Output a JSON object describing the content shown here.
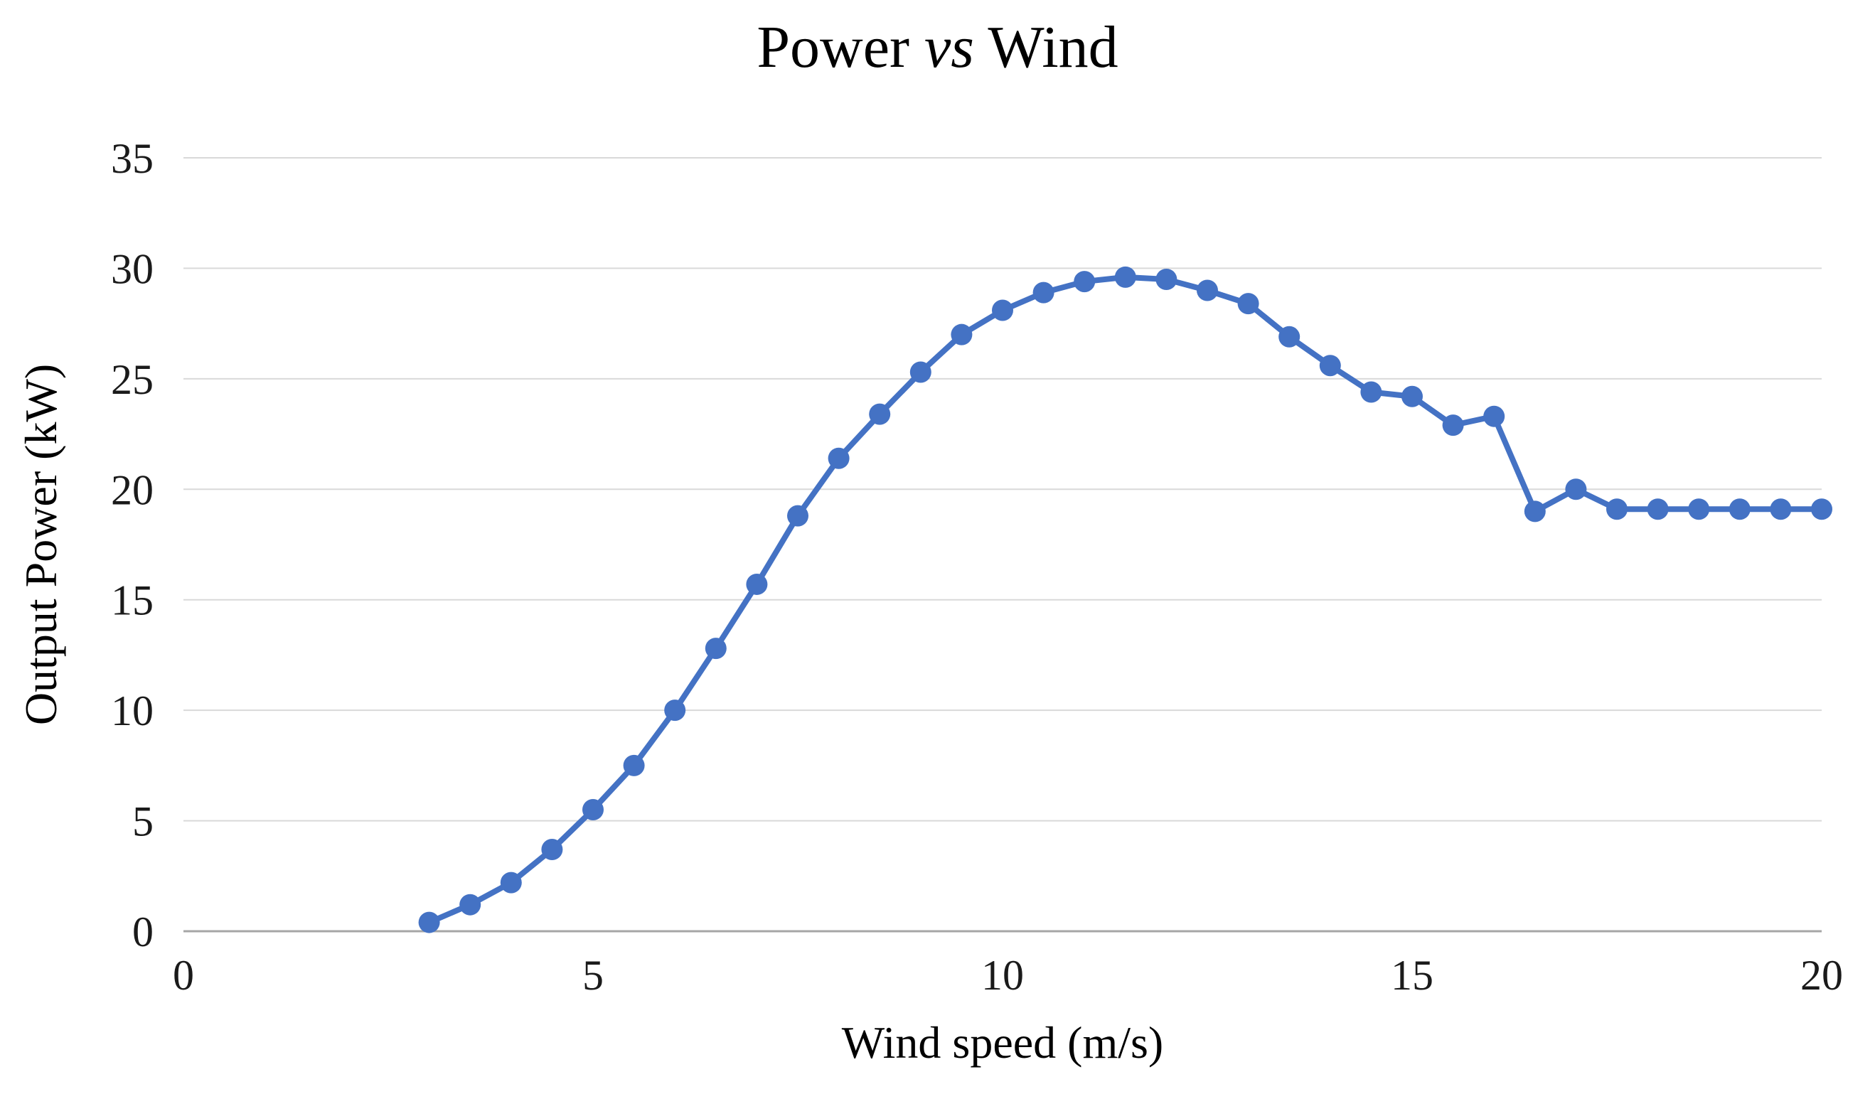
{
  "title": {
    "prefix": "Power ",
    "italic": "vs",
    "suffix": " Wind"
  },
  "chart_data": {
    "type": "line",
    "title": "Power vs Wind",
    "xlabel": "Wind speed (m/s)",
    "ylabel": "Output Power (kW)",
    "xlim": [
      0,
      20
    ],
    "ylim": [
      0,
      35
    ],
    "x_ticks": [
      0,
      5,
      10,
      15,
      20
    ],
    "y_ticks": [
      0,
      5,
      10,
      15,
      20,
      25,
      30,
      35
    ],
    "grid": "horizontal",
    "legend": "none",
    "series_color": "#4472C4",
    "gridline_color": "#d9d9d9",
    "axis_line_color": "#a6a6a6",
    "x": [
      3,
      3.5,
      4,
      4.5,
      5,
      5.5,
      6,
      6.5,
      7,
      7.5,
      8,
      8.5,
      9,
      9.5,
      10,
      10.5,
      11,
      11.5,
      12,
      12.5,
      13,
      13.5,
      14,
      14.5,
      15,
      15.5,
      16,
      16.5,
      17,
      17.5,
      18,
      18.5,
      19,
      19.5,
      20
    ],
    "values": [
      0.4,
      1.2,
      2.2,
      3.7,
      5.5,
      7.5,
      10.0,
      12.8,
      15.7,
      18.8,
      21.4,
      23.4,
      25.3,
      27.0,
      28.1,
      28.9,
      29.4,
      29.6,
      29.5,
      29.0,
      28.4,
      26.9,
      25.6,
      24.4,
      24.2,
      22.9,
      23.3,
      19.0,
      20.0,
      19.1,
      19.1,
      19.1,
      19.1,
      19.1,
      19.1
    ]
  }
}
